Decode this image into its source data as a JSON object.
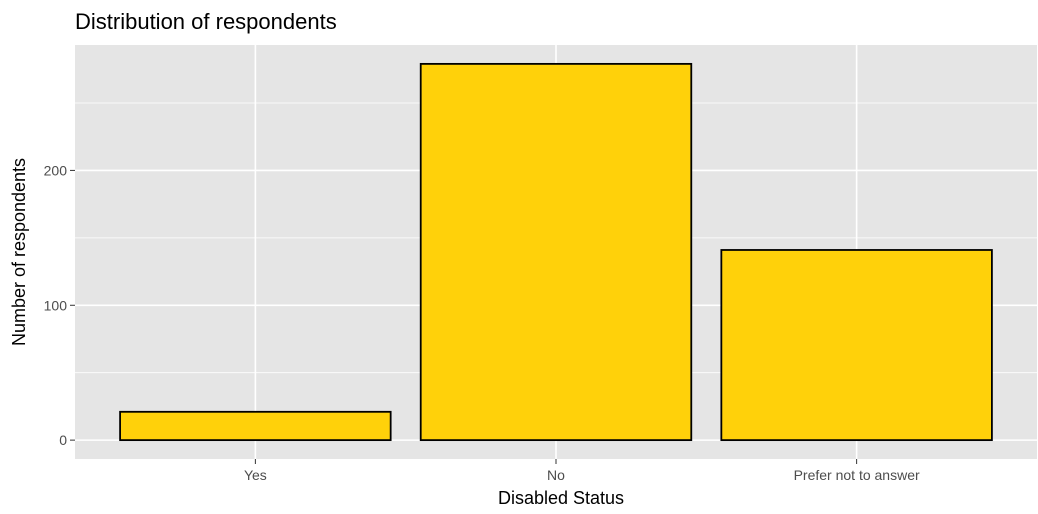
{
  "chart_data": {
    "type": "bar",
    "title": "Distribution of respondents",
    "xlabel": "Disabled Status",
    "ylabel": "Number of respondents",
    "categories": [
      "Yes",
      "No",
      "Prefer not to answer"
    ],
    "values": [
      21,
      279,
      141
    ],
    "ylim": [
      -14,
      293
    ],
    "yticks": [
      0,
      100,
      200
    ],
    "ytick_labels": [
      "0",
      "100",
      "200"
    ],
    "grid": true,
    "legend": "none",
    "colors": {
      "bar_fill": "#FFD10A",
      "bar_stroke": "#000000",
      "panel_background": "#E5E5E5",
      "grid": "#FFFFFF"
    }
  }
}
